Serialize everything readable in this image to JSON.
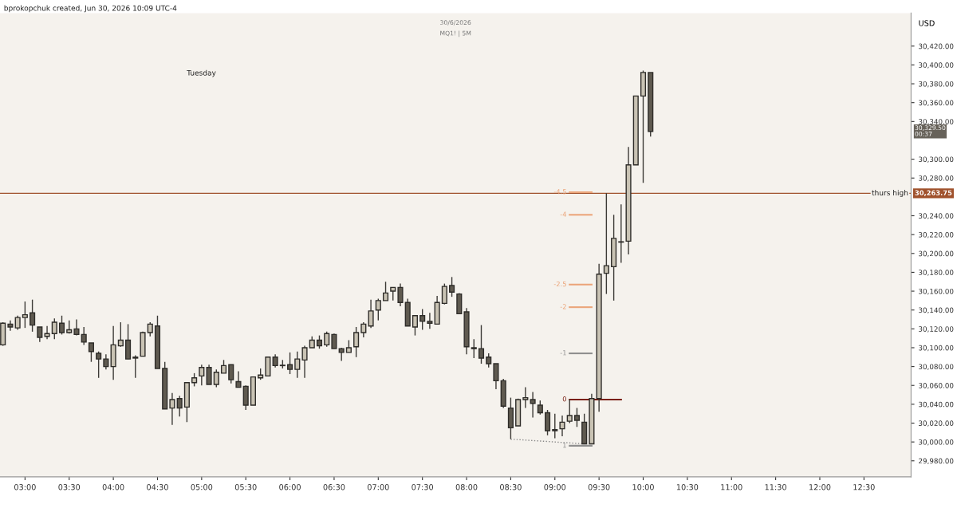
{
  "chart_data": {
    "type": "candlestick",
    "title": "30/6/2026",
    "subtitle": "MQ1! | 5M",
    "ylabel": "USD",
    "annotations": [
      "bprokopchuk created, Jun 30, 2026 10:09 UTC-4",
      "Tuesday",
      "30,329.50\n00:37",
      "30,263.75"
    ],
    "series": [
      {
        "color": "#c9c3b4",
        "x": [
          "2026-06-30T02:45",
          "2026-06-30T02:55",
          "2026-06-30T03:00",
          "2026-06-30T03:15",
          "2026-06-30T03:20",
          "2026-06-30T03:30",
          "2026-06-30T04:00",
          "2026-06-30T04:05",
          "2026-06-30T04:15",
          "2026-06-30T04:20",
          "2026-06-30T04:25",
          "2026-06-30T04:40",
          "2026-06-30T04:50",
          "2026-06-30T04:55",
          "2026-06-30T05:00",
          "2026-06-30T05:10",
          "2026-06-30T05:15",
          "2026-06-30T05:35",
          "2026-06-30T05:40",
          "2026-06-30T05:45",
          "2026-06-30T05:55",
          "2026-06-30T06:05",
          "2026-06-30T06:10",
          "2026-06-30T06:15",
          "2026-06-30T06:25",
          "2026-06-30T06:40",
          "2026-06-30T06:45",
          "2026-06-30T06:50",
          "2026-06-30T06:55",
          "2026-06-30T07:00",
          "2026-06-30T07:05",
          "2026-06-30T07:10",
          "2026-06-30T07:25",
          "2026-06-30T07:40",
          "2026-06-30T07:45",
          "2026-06-30T08:35",
          "2026-06-30T08:40",
          "2026-06-30T09:05",
          "2026-06-30T09:10",
          "2026-06-30T09:25",
          "2026-06-30T09:30",
          "2026-06-30T09:35",
          "2026-06-30T09:40",
          "2026-06-30T09:45",
          "2026-06-30T09:50",
          "2026-06-30T09:55",
          "2026-06-30T10:00"
        ],
        "ohlc": [
          [
            30103,
            30127,
            30102,
            30126
          ],
          [
            30121,
            30134,
            30119,
            30132
          ],
          [
            30132,
            30149,
            30121,
            30135
          ],
          [
            30112,
            30123,
            30109,
            30115
          ],
          [
            30115,
            30131,
            30109,
            30127
          ],
          [
            30116,
            30129,
            30115,
            30119
          ],
          [
            30080,
            30123,
            30066,
            30103
          ],
          [
            30102,
            30127,
            30101,
            30108
          ],
          [
            30089,
            30092,
            30068,
            30090
          ],
          [
            30091,
            30117,
            30091,
            30116
          ],
          [
            30116,
            30127,
            30112,
            30125
          ],
          [
            30036,
            30052,
            30018,
            30045
          ],
          [
            30037,
            30063,
            30021,
            30063
          ],
          [
            30063,
            30073,
            30059,
            30068
          ],
          [
            30070,
            30082,
            30060,
            30079
          ],
          [
            30061,
            30077,
            30058,
            30074
          ],
          [
            30073,
            30087,
            30073,
            30081
          ],
          [
            30039,
            30069,
            30039,
            30069
          ],
          [
            30068,
            30078,
            30066,
            30071
          ],
          [
            30070,
            30090,
            30070,
            30090
          ],
          [
            30081,
            30087,
            30078,
            30081
          ],
          [
            30077,
            30096,
            30068,
            30088
          ],
          [
            30087,
            30102,
            30068,
            30100
          ],
          [
            30100,
            30112,
            30100,
            30108
          ],
          [
            30103,
            30117,
            30101,
            30115
          ],
          [
            30095,
            30108,
            30095,
            30100
          ],
          [
            30101,
            30122,
            30090,
            30116
          ],
          [
            30116,
            30127,
            30111,
            30125
          ],
          [
            30123,
            30151,
            30121,
            30139
          ],
          [
            30140,
            30152,
            30129,
            30150
          ],
          [
            30150,
            30170,
            30150,
            30158
          ],
          [
            30160,
            30164,
            30150,
            30164
          ],
          [
            30122,
            30134,
            30113,
            30134
          ],
          [
            30125,
            30155,
            30125,
            30148
          ],
          [
            30147,
            30168,
            30146,
            30165
          ],
          [
            30017,
            30046,
            30017,
            30045
          ],
          [
            30045,
            30058,
            30036,
            30047
          ],
          [
            30014,
            30028,
            30006,
            30021
          ],
          [
            30022,
            30045,
            30020,
            30028
          ],
          [
            29998,
            30051,
            29998,
            30046
          ],
          [
            30046,
            30189,
            30032,
            30178
          ],
          [
            30179,
            30264,
            30157,
            30187
          ],
          [
            30186,
            30241,
            30150,
            30216
          ],
          [
            30212,
            30252,
            30190,
            30212
          ],
          [
            30213,
            30313,
            30199,
            30294
          ],
          [
            30294,
            30367,
            30294,
            30367
          ],
          [
            30367,
            30394,
            30275,
            30392
          ]
        ]
      },
      {
        "color": "#5f5a50",
        "x": [
          "2026-06-30T02:50",
          "2026-06-30T03:05",
          "2026-06-30T03:10",
          "2026-06-30T03:25",
          "2026-06-30T03:35",
          "2026-06-30T03:40",
          "2026-06-30T03:45",
          "2026-06-30T03:50",
          "2026-06-30T03:55",
          "2026-06-30T04:10",
          "2026-06-30T04:30",
          "2026-06-30T04:35",
          "2026-06-30T04:45",
          "2026-06-30T05:05",
          "2026-06-30T05:20",
          "2026-06-30T05:25",
          "2026-06-30T05:30",
          "2026-06-30T05:50",
          "2026-06-30T06:00",
          "2026-06-30T06:20",
          "2026-06-30T06:30",
          "2026-06-30T06:35",
          "2026-06-30T07:15",
          "2026-06-30T07:20",
          "2026-06-30T07:30",
          "2026-06-30T07:35",
          "2026-06-30T07:50",
          "2026-06-30T07:55",
          "2026-06-30T08:00",
          "2026-06-30T08:05",
          "2026-06-30T08:10",
          "2026-06-30T08:15",
          "2026-06-30T08:20",
          "2026-06-30T08:25",
          "2026-06-30T08:30",
          "2026-06-30T08:45",
          "2026-06-30T08:50",
          "2026-06-30T08:55",
          "2026-06-30T09:00",
          "2026-06-30T09:15",
          "2026-06-30T09:20",
          "2026-06-30T10:05"
        ],
        "ohlc": [
          [
            30125,
            30129,
            30118,
            30122
          ],
          [
            30137,
            30151,
            30117,
            30124
          ],
          [
            30122,
            30122,
            30106,
            30111
          ],
          [
            30126,
            30134,
            30114,
            30116
          ],
          [
            30120,
            30130,
            30113,
            30114
          ],
          [
            30114,
            30122,
            30103,
            30106
          ],
          [
            30105,
            30105,
            30085,
            30096
          ],
          [
            30094,
            30096,
            30068,
            30088
          ],
          [
            30088,
            30093,
            30077,
            30080
          ],
          [
            30108,
            30125,
            30088,
            30088
          ],
          [
            30123,
            30134,
            30078,
            30078
          ],
          [
            30078,
            30085,
            30035,
            30035
          ],
          [
            30046,
            30049,
            30027,
            30036
          ],
          [
            30079,
            30082,
            30061,
            30061
          ],
          [
            30082,
            30082,
            30062,
            30066
          ],
          [
            30064,
            30075,
            30058,
            30058
          ],
          [
            30059,
            30060,
            30034,
            30039
          ],
          [
            30090,
            30093,
            30079,
            30081
          ],
          [
            30082,
            30095,
            30072,
            30077
          ],
          [
            30108,
            30113,
            30099,
            30102
          ],
          [
            30114,
            30115,
            30099,
            30099
          ],
          [
            30099,
            30100,
            30086,
            30095
          ],
          [
            30164,
            30168,
            30144,
            30148
          ],
          [
            30148,
            30152,
            30123,
            30123
          ],
          [
            30134,
            30141,
            30119,
            30128
          ],
          [
            30128,
            30137,
            30120,
            30126
          ],
          [
            30166,
            30175,
            30154,
            30159
          ],
          [
            30157,
            30158,
            30136,
            30136
          ],
          [
            30138,
            30142,
            30093,
            30101
          ],
          [
            30100,
            30109,
            30089,
            30099
          ],
          [
            30099,
            30124,
            30083,
            30089
          ],
          [
            30090,
            30094,
            30079,
            30083
          ],
          [
            30083,
            30083,
            30056,
            30065
          ],
          [
            30065,
            30067,
            30036,
            30038
          ],
          [
            30036,
            30047,
            30003,
            30015
          ],
          [
            30045,
            30053,
            30026,
            30041
          ],
          [
            30039,
            30044,
            30029,
            30031
          ],
          [
            30031,
            30034,
            30007,
            30012
          ],
          [
            30013,
            30030,
            30004,
            30012
          ],
          [
            30028,
            30036,
            30016,
            30023
          ],
          [
            30021,
            30030,
            29998,
            29998
          ],
          [
            30392,
            30392,
            30324,
            30329.5
          ]
        ]
      },
      {
        "type": "line",
        "name": "-4.5",
        "color": "#eba57a",
        "x": [
          "2026-06-30T09:10",
          "2026-06-30T09:25"
        ],
        "values": [
          30265,
          30265
        ]
      },
      {
        "type": "line",
        "name": "-4",
        "color": "#eba57a",
        "x": [
          "2026-06-30T09:10",
          "2026-06-30T09:25"
        ],
        "values": [
          30241,
          30241
        ]
      },
      {
        "type": "line",
        "name": "-2.5",
        "color": "#eba57a",
        "x": [
          "2026-06-30T09:10",
          "2026-06-30T09:25"
        ],
        "values": [
          30167,
          30167
        ]
      },
      {
        "type": "line",
        "name": "-2",
        "color": "#eba57a",
        "x": [
          "2026-06-30T09:10",
          "2026-06-30T09:25"
        ],
        "values": [
          30143,
          30143
        ]
      },
      {
        "type": "line",
        "name": "-1",
        "color": "#8f8f8f",
        "x": [
          "2026-06-30T09:10",
          "2026-06-30T09:25"
        ],
        "values": [
          30094,
          30094
        ]
      },
      {
        "type": "line",
        "name": "1",
        "color": "#8f8f8f",
        "x": [
          "2026-06-30T09:10",
          "2026-06-30T09:25"
        ],
        "values": [
          29996,
          29996
        ]
      },
      {
        "type": "line",
        "name": "0",
        "color": "#7a1f12",
        "x": [
          "2026-06-30T09:10",
          "2026-06-30T09:45"
        ],
        "values": [
          30045,
          30045
        ]
      },
      {
        "type": "line",
        "color": "#888888",
        "line_style": "dotted",
        "x": [
          "2026-06-30T08:30",
          "2026-06-30T09:20"
        ],
        "values": [
          30003,
          29998
        ]
      }
    ],
    "ref_lines": [
      {
        "axis": "y",
        "value": 30263.75,
        "label": "thurs high",
        "color": "#a0522d"
      }
    ],
    "xlim": [
      "2026-06-30T02:43",
      "2026-06-30T13:02"
    ],
    "xticks": [
      {
        "value": "2026-06-30T03:00",
        "label": "03:00"
      },
      {
        "value": "2026-06-30T03:30",
        "label": "03:30"
      },
      {
        "value": "2026-06-30T04:00",
        "label": "04:00"
      },
      {
        "value": "2026-06-30T04:30",
        "label": "04:30"
      },
      {
        "value": "2026-06-30T05:00",
        "label": "05:00"
      },
      {
        "value": "2026-06-30T05:30",
        "label": "05:30"
      },
      {
        "value": "2026-06-30T06:00",
        "label": "06:00"
      },
      {
        "value": "2026-06-30T06:30",
        "label": "06:30"
      },
      {
        "value": "2026-06-30T07:00",
        "label": "07:00"
      },
      {
        "value": "2026-06-30T07:30",
        "label": "07:30"
      },
      {
        "value": "2026-06-30T08:00",
        "label": "08:00"
      },
      {
        "value": "2026-06-30T08:30",
        "label": "08:30"
      },
      {
        "value": "2026-06-30T09:00",
        "label": "09:00"
      },
      {
        "value": "2026-06-30T09:30",
        "label": "09:30"
      },
      {
        "value": "2026-06-30T10:00",
        "label": "10:00"
      },
      {
        "value": "2026-06-30T10:30",
        "label": "10:30"
      },
      {
        "value": "2026-06-30T11:00",
        "label": "11:00"
      },
      {
        "value": "2026-06-30T11:30",
        "label": "11:30"
      },
      {
        "value": "2026-06-30T12:00",
        "label": "12:00"
      },
      {
        "value": "2026-06-30T12:30",
        "label": "12:30"
      }
    ],
    "ylim": [
      29963,
      30455
    ],
    "yticks": [
      {
        "value": 29980,
        "label": "29,980.00"
      },
      {
        "value": 30000,
        "label": "30,000.00"
      },
      {
        "value": 30020,
        "label": "30,020.00"
      },
      {
        "value": 30040,
        "label": "30,040.00"
      },
      {
        "value": 30060,
        "label": "30,060.00"
      },
      {
        "value": 30080,
        "label": "30,080.00"
      },
      {
        "value": 30100,
        "label": "30,100.00"
      },
      {
        "value": 30120,
        "label": "30,120.00"
      },
      {
        "value": 30140,
        "label": "30,140.00"
      },
      {
        "value": 30160,
        "label": "30,160.00"
      },
      {
        "value": 30180,
        "label": "30,180.00"
      },
      {
        "value": 30200,
        "label": "30,200.00"
      },
      {
        "value": 30220,
        "label": "30,220.00"
      },
      {
        "value": 30240,
        "label": "30,240.00"
      },
      {
        "value": 30280,
        "label": "30,280.00"
      },
      {
        "value": 30300,
        "label": "30,300.00"
      },
      {
        "value": 30340,
        "label": "30,340.00"
      },
      {
        "value": 30360,
        "label": "30,360.00"
      },
      {
        "value": 30380,
        "label": "30,380.00"
      },
      {
        "value": 30400,
        "label": "30,400.00"
      },
      {
        "value": 30420,
        "label": "30,420.00"
      }
    ],
    "grid": false,
    "legend": false
  }
}
